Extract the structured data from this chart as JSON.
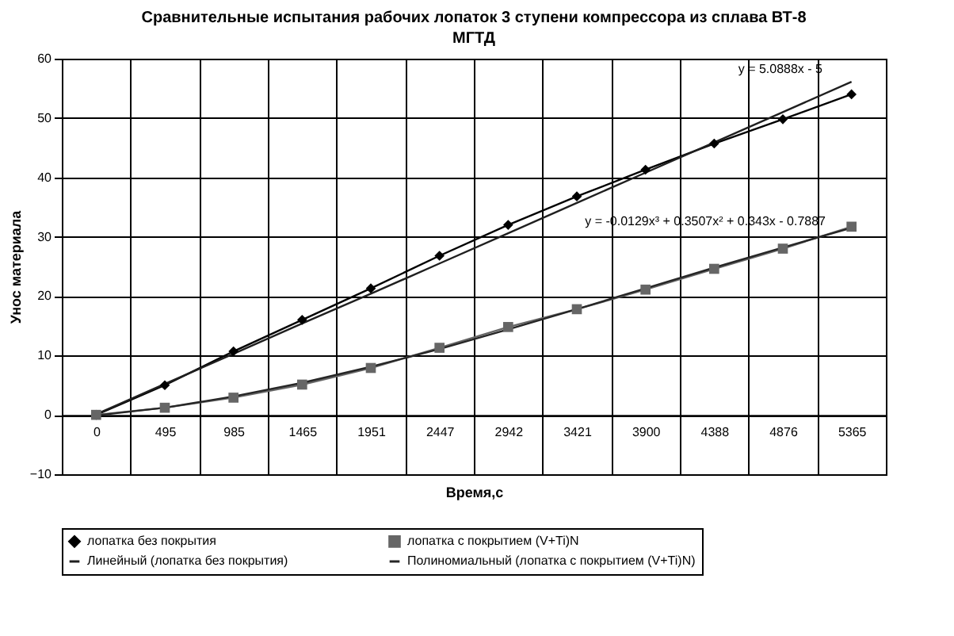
{
  "chart_data": {
    "type": "line",
    "title": "Сравнительные испытания рабочих лопаток 3 ступени компрессора из сплава ВТ-8",
    "subtitle": "МГТД",
    "xlabel": "Время,с",
    "ylabel": "Унос материала",
    "categories": [
      "0",
      "495",
      "985",
      "1465",
      "1951",
      "2447",
      "2942",
      "3421",
      "3900",
      "4388",
      "4876",
      "5365"
    ],
    "series": [
      {
        "name": "лопатка без покрытия",
        "color": "#000000",
        "marker": "diamond",
        "values": [
          0,
          5,
          10.7,
          16,
          21.3,
          26.8,
          32,
          36.8,
          41.3,
          45.7,
          49.8,
          54
        ]
      },
      {
        "name": "лопатка с покрытием (V+Ti)N",
        "color": "#666666",
        "marker": "square",
        "values": [
          0,
          1.2,
          2.9,
          5.1,
          7.9,
          11.3,
          14.8,
          17.8,
          21.1,
          24.6,
          28,
          31.7
        ]
      },
      {
        "name": "Линейный (лопатка без покрытия)",
        "color": "#1f1f1f",
        "marker": "none",
        "values": [
          0.1,
          5.2,
          10.3,
          15.4,
          20.4,
          25.5,
          30.6,
          35.7,
          40.8,
          45.9,
          51.0,
          56.1
        ]
      },
      {
        "name": "Полиномиальный (лопатка с покрытием (V+Ti)N)",
        "color": "#262626",
        "marker": "none",
        "values": [
          -0.1,
          1.2,
          3.1,
          5.4,
          8.1,
          11.1,
          14.4,
          17.8,
          21.3,
          24.8,
          28.2,
          31.5
        ]
      }
    ],
    "annotations": [
      "y = 5.0888x - 5",
      "y = -0.0129x³ + 0.3507x² + 0.343x - 0.7887"
    ],
    "ylim": [
      -10,
      60
    ],
    "yticks": [
      -10,
      0,
      10,
      20,
      30,
      40,
      50,
      60
    ],
    "grid": true,
    "legend": "bottom"
  }
}
